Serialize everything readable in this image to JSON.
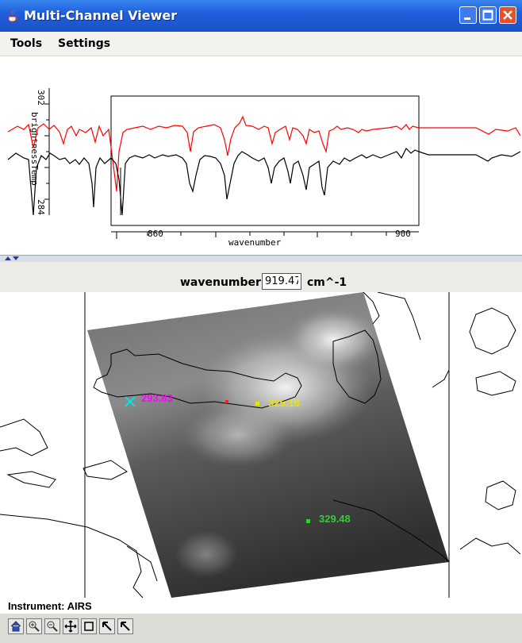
{
  "window": {
    "title": "Multi-Channel Viewer"
  },
  "menubar": {
    "items": [
      "Tools",
      "Settings"
    ]
  },
  "spectrum": {
    "y_axis_label": "brightnessTemp",
    "y_ticks": [
      "302",
      "284"
    ],
    "x_axis_label": "wavenumber",
    "x_ticks": [
      "860",
      "900"
    ]
  },
  "wavenumber": {
    "label": "wavenumber",
    "value": "919.47",
    "units": "cm^-1"
  },
  "probes": [
    {
      "value": "293.83",
      "color": "#ff00ff",
      "marker": "cross"
    },
    {
      "value": "325.16",
      "color": "#e6e600",
      "marker": "square"
    },
    {
      "value": "329.48",
      "color": "#33cc33",
      "marker": "square"
    }
  ],
  "status": {
    "instrument": "Instrument: AIRS"
  },
  "toolbar": {
    "buttons": [
      "home-icon",
      "zoom-in-icon",
      "zoom-out-icon",
      "pan-icon",
      "select-box-icon",
      "pointer-icon",
      "probe-icon"
    ]
  }
}
